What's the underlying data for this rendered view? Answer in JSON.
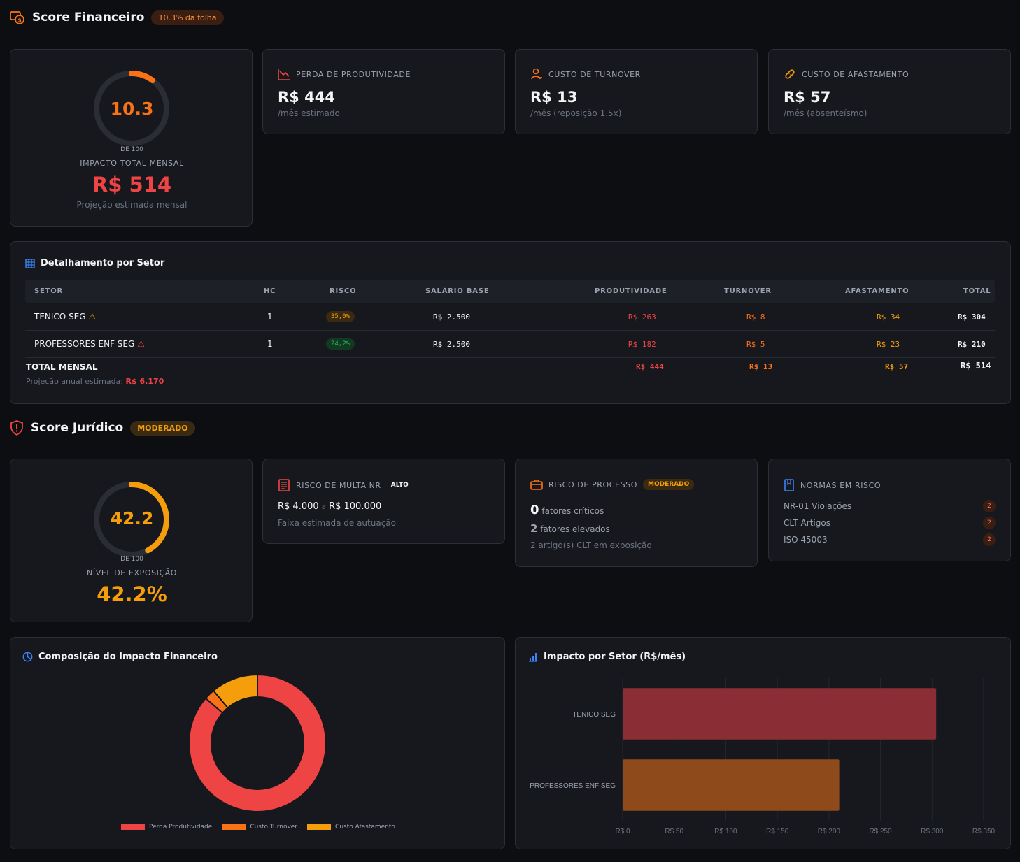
{
  "financial": {
    "title": "Score Financeiro",
    "badge": "10.3% da folha",
    "gauge": {
      "value": "10.3",
      "fraction": 0.103,
      "of": "DE 100",
      "label": "IMPACTO TOTAL MENSAL",
      "total": "R$ 514",
      "subtitle": "Projeção estimada mensal"
    },
    "kpis": [
      {
        "icon": "trending-down-icon",
        "label": "PERDA DE PRODUTIVIDADE",
        "value": "R$ 444",
        "note": "/mês estimado"
      },
      {
        "icon": "user-minus-icon",
        "label": "CUSTO DE TURNOVER",
        "value": "R$ 13",
        "note": "/mês (reposição 1.5x)"
      },
      {
        "icon": "bandage-icon",
        "label": "CUSTO DE AFASTAMENTO",
        "value": "R$ 57",
        "note": "/mês (absenteísmo)"
      }
    ]
  },
  "sector_table": {
    "title": "Detalhamento por Setor",
    "headers": [
      "SETOR",
      "HC",
      "RISCO",
      "SALÁRIO BASE",
      "PRODUTIVIDADE",
      "TURNOVER",
      "AFASTAMENTO",
      "TOTAL"
    ],
    "rows": [
      {
        "setor": "TENICO SEG",
        "hc": "1",
        "risco": "35,0%",
        "salario": "R$ 2.500",
        "produtividade": "R$ 263",
        "turnover": "R$ 8",
        "afastamento": "R$ 34",
        "total": "R$ 304"
      },
      {
        "setor": "PROFESSORES ENF SEG",
        "hc": "1",
        "risco": "24,2%",
        "salario": "R$ 2.500",
        "produtividade": "R$ 182",
        "turnover": "R$ 5",
        "afastamento": "R$ 23",
        "total": "R$ 210"
      }
    ],
    "total_label": "TOTAL MENSAL",
    "annual_label": "Projeção anual estimada:",
    "annual_value": "R$ 6.170",
    "totals": {
      "produtividade": "R$ 444",
      "turnover": "R$ 13",
      "afastamento": "R$ 57",
      "total": "R$ 514"
    }
  },
  "legal": {
    "title": "Score Jurídico",
    "badge": "MODERADO",
    "gauge": {
      "value": "42.2",
      "fraction": 0.422,
      "of": "DE 100",
      "label": "NÍVEL DE EXPOSIÇÃO",
      "total": "42.2%"
    },
    "fine": {
      "label": "RISCO DE MULTA NR",
      "level": "ALTO",
      "min": "R$ 4.000",
      "sep": "a",
      "max": "R$ 100.000",
      "note": "Faixa estimada de autuação"
    },
    "process": {
      "label": "RISCO DE PROCESSO",
      "level": "MODERADO",
      "critical_count": "0",
      "critical_label": "fatores críticos",
      "elevated_count": "2",
      "elevated_label": "fatores elevados",
      "note": "2 artigo(s) CLT em exposição"
    },
    "norms": {
      "label": "NORMAS EM RISCO",
      "items": [
        {
          "name": "NR-01 Violações",
          "count": "2"
        },
        {
          "name": "CLT Artigos",
          "count": "2"
        },
        {
          "name": "ISO 45003",
          "count": "2"
        }
      ]
    }
  },
  "composition_chart": {
    "title": "Composição do Impacto Financeiro",
    "legend": [
      "Perda Produtividade",
      "Custo Turnover",
      "Custo Afastamento"
    ]
  },
  "sector_chart": {
    "title": "Impacto por Setor (R$/mês)"
  },
  "colors": {
    "red": "#ef4444",
    "orange": "#f97316",
    "amber": "#f59e0b",
    "card": "#16181d",
    "bg": "#0c0e12"
  },
  "chart_data": [
    {
      "type": "pie",
      "categories": [
        "Perda Produtividade",
        "Custo Turnover",
        "Custo Afastamento"
      ],
      "values": [
        444,
        13,
        57
      ],
      "colors": [
        "#ef4444",
        "#f97316",
        "#f59e0b"
      ],
      "title": "Composição do Impacto Financeiro",
      "legend": "bottom"
    },
    {
      "type": "bar",
      "orientation": "horizontal",
      "categories": [
        "TENICO SEG",
        "PROFESSORES ENF SEG"
      ],
      "values": [
        304,
        210
      ],
      "colors": [
        "#8b2d35",
        "#8f4a1c"
      ],
      "xlim": [
        0,
        350
      ],
      "xticks": [
        "R$ 0",
        "R$ 50",
        "R$ 100",
        "R$ 150",
        "R$ 200",
        "R$ 250",
        "R$ 300",
        "R$ 350"
      ],
      "title": "Impacto por Setor (R$/mês)",
      "grid": true
    }
  ]
}
